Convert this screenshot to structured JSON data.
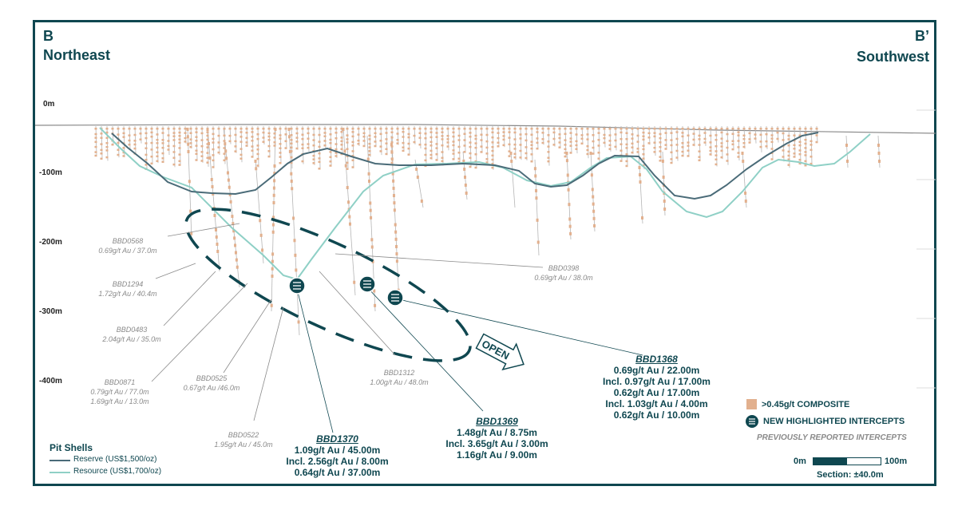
{
  "corners": {
    "left_letter": "B",
    "left_direction": "Northeast",
    "right_letter": "B’",
    "right_direction": "Southwest"
  },
  "depth_labels": [
    "0m",
    "-100m",
    "-200m",
    "-300m",
    "-400m"
  ],
  "open_label": "OPEN",
  "colors": {
    "frame": "#0f4750",
    "reserve_shell": "#4a6b78",
    "resource_shell": "#8fd0c6",
    "composite": "#e2b08e",
    "intercept_marker": "#0f4750"
  },
  "previous_intercepts": [
    {
      "hole": "BBD0568",
      "lines": [
        "0.69g/t Au / 37.0m"
      ]
    },
    {
      "hole": "BBD1294",
      "lines": [
        "1.72g/t Au / 40.4m"
      ]
    },
    {
      "hole": "BBD0483",
      "lines": [
        "2.04g/t Au / 35.0m"
      ]
    },
    {
      "hole": "BBD0871",
      "lines": [
        "0.79g/t Au / 77.0m",
        "1.69g/t Au / 13.0m"
      ]
    },
    {
      "hole": "BBD0525",
      "lines": [
        "0.67g/t Au /46.0m"
      ]
    },
    {
      "hole": "BBD0522",
      "lines": [
        "1.95g/t Au / 45.0m"
      ]
    },
    {
      "hole": "BBD1312",
      "lines": [
        "1.00g/t Au / 48.0m"
      ]
    },
    {
      "hole": "BBD0398",
      "lines": [
        "0.69g/t Au / 38.0m"
      ]
    }
  ],
  "new_intercepts": [
    {
      "hole": "BBD1370",
      "lines": [
        "1.09g/t Au / 45.00m",
        "Incl. 2.56g/t Au / 8.00m",
        "0.64g/t Au / 37.00m"
      ]
    },
    {
      "hole": "BBD1369",
      "lines": [
        "1.48g/t Au / 8.75m",
        "Incl. 3.65g/t Au / 3.00m",
        "1.16g/t Au / 9.00m"
      ]
    },
    {
      "hole": "BBD1368",
      "lines": [
        "0.69g/t Au / 22.00m",
        "Incl. 0.97g/t Au / 17.00m",
        "0.62g/t Au / 17.00m",
        "Incl. 1.03g/t Au / 4.00m",
        "0.62g/t Au / 10.00m"
      ]
    }
  ],
  "pit_shells": {
    "title": "Pit Shells",
    "reserve": "Reserve (US$1,500/oz)",
    "resource": "Resource (US$1,700/oz)"
  },
  "legend": {
    "composite": ">0.45g/t COMPOSITE",
    "new_intercepts": "NEW HIGHLIGHTED INTERCEPTS",
    "previous": "PREVIOUSLY REPORTED INTERCEPTS"
  },
  "scale": {
    "start": "0m",
    "end": "100m",
    "section": "Section: ±40.0m"
  }
}
